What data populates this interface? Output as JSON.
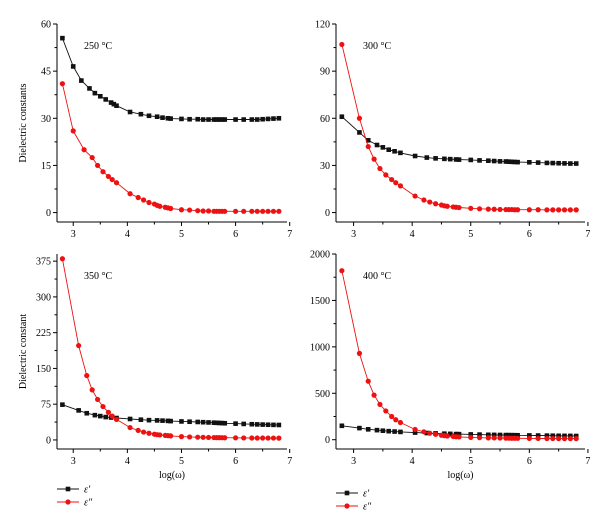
{
  "colors": {
    "eps_real": "#111111",
    "eps_imag": "#ee1111",
    "axis": "#000000",
    "background": "#ffffff"
  },
  "x_tick_labels": [
    "3",
    "4",
    "5",
    "6",
    "7"
  ],
  "chart_data": [
    {
      "type": "line",
      "panel_label": "250 °C",
      "xlabel": "",
      "ylabel": "Dielectric constants",
      "xlim": [
        2.7,
        6.95
      ],
      "ylim": [
        -3,
        60
      ],
      "y_ticks": [
        0,
        15,
        30,
        45,
        60
      ],
      "series": [
        {
          "name": "ε′",
          "marker": "square",
          "x": [
            2.8,
            3.0,
            3.15,
            3.3,
            3.4,
            3.5,
            3.6,
            3.7,
            3.75,
            3.8,
            4.05,
            4.25,
            4.4,
            4.55,
            4.65,
            4.75,
            4.8,
            5.0,
            5.15,
            5.3,
            5.4,
            5.5,
            5.6,
            5.65,
            5.7,
            5.75,
            5.8,
            6.0,
            6.15,
            6.3,
            6.4,
            6.5,
            6.6,
            6.7,
            6.8
          ],
          "y": [
            55.5,
            46.5,
            42.0,
            39.5,
            38.0,
            37.0,
            36.0,
            35.0,
            34.5,
            34.0,
            32.0,
            31.3,
            30.8,
            30.5,
            30.2,
            30.0,
            29.9,
            29.8,
            29.7,
            29.7,
            29.6,
            29.6,
            29.6,
            29.6,
            29.6,
            29.6,
            29.6,
            29.6,
            29.6,
            29.6,
            29.6,
            29.7,
            29.8,
            29.9,
            30.0
          ]
        },
        {
          "name": "ε″",
          "marker": "circle",
          "x": [
            2.8,
            3.0,
            3.2,
            3.35,
            3.45,
            3.55,
            3.65,
            3.72,
            3.8,
            4.05,
            4.2,
            4.3,
            4.4,
            4.5,
            4.55,
            4.6,
            4.7,
            4.75,
            4.8,
            5.0,
            5.15,
            5.3,
            5.4,
            5.5,
            5.6,
            5.65,
            5.7,
            5.75,
            5.8,
            6.0,
            6.15,
            6.3,
            6.4,
            6.5,
            6.6,
            6.7,
            6.8
          ],
          "y": [
            41.0,
            26.0,
            20.0,
            17.5,
            15.0,
            13.0,
            11.5,
            10.5,
            9.5,
            6.0,
            4.8,
            4.0,
            3.2,
            2.7,
            2.3,
            2.0,
            1.7,
            1.5,
            1.3,
            0.9,
            0.8,
            0.6,
            0.5,
            0.5,
            0.4,
            0.4,
            0.4,
            0.4,
            0.4,
            0.4,
            0.4,
            0.4,
            0.4,
            0.4,
            0.4,
            0.4,
            0.4
          ]
        }
      ]
    },
    {
      "type": "line",
      "panel_label": "300 °C",
      "xlabel": "",
      "ylabel": "",
      "xlim": [
        2.7,
        6.95
      ],
      "ylim": [
        -6,
        120
      ],
      "y_ticks": [
        0,
        30,
        60,
        90,
        120
      ],
      "series": [
        {
          "name": "ε′",
          "marker": "square",
          "x": [
            2.8,
            3.1,
            3.25,
            3.4,
            3.5,
            3.6,
            3.7,
            3.8,
            4.05,
            4.25,
            4.4,
            4.55,
            4.65,
            4.75,
            4.8,
            5.0,
            5.15,
            5.3,
            5.4,
            5.5,
            5.6,
            5.65,
            5.7,
            5.75,
            5.8,
            6.0,
            6.15,
            6.3,
            6.4,
            6.5,
            6.6,
            6.7,
            6.8
          ],
          "y": [
            61.0,
            51.0,
            46.0,
            43.0,
            41.5,
            40.0,
            39.0,
            38.0,
            36.0,
            35.0,
            34.5,
            34.2,
            34.0,
            33.8,
            33.7,
            33.5,
            33.2,
            33.0,
            32.8,
            32.6,
            32.5,
            32.4,
            32.3,
            32.2,
            32.1,
            32.0,
            31.8,
            31.6,
            31.5,
            31.4,
            31.3,
            31.2,
            31.2
          ]
        },
        {
          "name": "ε″",
          "marker": "circle",
          "x": [
            2.8,
            3.1,
            3.25,
            3.35,
            3.45,
            3.55,
            3.65,
            3.72,
            3.8,
            4.05,
            4.2,
            4.3,
            4.4,
            4.5,
            4.55,
            4.6,
            4.7,
            4.75,
            4.8,
            5.0,
            5.15,
            5.3,
            5.4,
            5.5,
            5.6,
            5.65,
            5.7,
            5.75,
            5.8,
            6.0,
            6.15,
            6.3,
            6.4,
            6.5,
            6.6,
            6.7,
            6.8
          ],
          "y": [
            107.0,
            60.0,
            42.0,
            34.0,
            28.0,
            24.0,
            21.0,
            19.0,
            17.0,
            10.5,
            8.0,
            6.7,
            5.6,
            4.8,
            4.3,
            4.0,
            3.6,
            3.4,
            3.2,
            2.7,
            2.4,
            2.2,
            2.1,
            2.0,
            1.9,
            1.9,
            1.9,
            1.8,
            1.8,
            1.8,
            1.8,
            1.7,
            1.7,
            1.7,
            1.7,
            1.7,
            1.7
          ]
        }
      ]
    },
    {
      "type": "line",
      "panel_label": "350 °C",
      "xlabel": "log(ω)",
      "ylabel": "Dielectric constant",
      "xlim": [
        2.7,
        6.95
      ],
      "ylim": [
        -19,
        390
      ],
      "y_ticks": [
        0,
        75,
        150,
        225,
        300,
        375
      ],
      "series": [
        {
          "name": "ε′",
          "marker": "square",
          "x": [
            2.8,
            3.1,
            3.25,
            3.4,
            3.5,
            3.6,
            3.7,
            3.8,
            4.05,
            4.25,
            4.4,
            4.55,
            4.65,
            4.75,
            4.8,
            5.0,
            5.15,
            5.3,
            5.4,
            5.5,
            5.6,
            5.65,
            5.7,
            5.75,
            5.8,
            6.0,
            6.15,
            6.3,
            6.4,
            6.5,
            6.6,
            6.7,
            6.8
          ],
          "y": [
            74.0,
            62.0,
            56.0,
            52.0,
            50.0,
            48.0,
            47.0,
            46.0,
            44.0,
            42.5,
            41.5,
            41.0,
            40.5,
            40.0,
            39.5,
            38.8,
            38.2,
            37.7,
            37.2,
            36.7,
            36.2,
            35.9,
            35.6,
            35.3,
            35.0,
            34.2,
            33.6,
            33.0,
            32.6,
            32.2,
            31.9,
            31.6,
            31.4
          ]
        },
        {
          "name": "ε″",
          "marker": "circle",
          "x": [
            2.8,
            3.1,
            3.25,
            3.35,
            3.45,
            3.55,
            3.65,
            3.72,
            3.8,
            4.05,
            4.2,
            4.3,
            4.4,
            4.5,
            4.55,
            4.6,
            4.7,
            4.75,
            4.8,
            5.0,
            5.15,
            5.3,
            5.4,
            5.5,
            5.6,
            5.65,
            5.7,
            5.75,
            5.8,
            6.0,
            6.15,
            6.3,
            6.4,
            6.5,
            6.6,
            6.7,
            6.8
          ],
          "y": [
            380.0,
            198.0,
            135.0,
            105.0,
            85.0,
            70.0,
            58.0,
            50.0,
            43.0,
            26.0,
            20.0,
            16.5,
            14.0,
            12.0,
            11.0,
            10.5,
            9.5,
            9.0,
            8.5,
            7.0,
            6.3,
            5.8,
            5.5,
            5.2,
            5.0,
            4.9,
            4.8,
            4.7,
            4.6,
            4.4,
            4.2,
            4.1,
            4.0,
            4.0,
            3.9,
            3.9,
            3.8
          ]
        }
      ]
    },
    {
      "type": "line",
      "panel_label": "400 °C",
      "xlabel": "log(ω)",
      "ylabel": "",
      "xlim": [
        2.7,
        6.95
      ],
      "ylim": [
        -100,
        2000
      ],
      "y_ticks": [
        0,
        500,
        1000,
        1500,
        2000
      ],
      "series": [
        {
          "name": "ε′",
          "marker": "square",
          "x": [
            2.8,
            3.1,
            3.25,
            3.4,
            3.5,
            3.6,
            3.7,
            3.8,
            4.05,
            4.25,
            4.4,
            4.55,
            4.65,
            4.75,
            4.8,
            5.0,
            5.15,
            5.3,
            5.4,
            5.5,
            5.6,
            5.65,
            5.7,
            5.75,
            5.8,
            6.0,
            6.15,
            6.3,
            6.4,
            6.5,
            6.6,
            6.7,
            6.8
          ],
          "y": [
            150.0,
            125.0,
            112.0,
            103.0,
            97.0,
            92.0,
            88.0,
            84.0,
            77.0,
            72.0,
            68.0,
            65.0,
            63.0,
            61.0,
            60.0,
            57.0,
            55.0,
            53.0,
            52.0,
            51.0,
            50.0,
            49.5,
            49.0,
            48.5,
            48.0,
            46.0,
            45.0,
            44.0,
            43.0,
            42.0,
            41.5,
            41.0,
            40.0
          ]
        },
        {
          "name": "ε″",
          "marker": "circle",
          "x": [
            2.8,
            3.1,
            3.25,
            3.35,
            3.45,
            3.55,
            3.65,
            3.72,
            3.8,
            4.05,
            4.2,
            4.3,
            4.4,
            4.5,
            4.55,
            4.6,
            4.7,
            4.75,
            4.8,
            5.0,
            5.15,
            5.3,
            5.4,
            5.5,
            5.6,
            5.65,
            5.7,
            5.75,
            5.8,
            6.0,
            6.15,
            6.3,
            6.4,
            6.5,
            6.6,
            6.7,
            6.8
          ],
          "y": [
            1820.0,
            930.0,
            630.0,
            480.0,
            380.0,
            310.0,
            250.0,
            215.0,
            185.0,
            110.0,
            85.0,
            70.0,
            58.0,
            48.0,
            44.0,
            40.0,
            35.0,
            32.0,
            30.0,
            25.0,
            22.0,
            20.0,
            19.0,
            18.0,
            17.0,
            16.5,
            16.0,
            15.5,
            15.0,
            14.0,
            13.5,
            13.0,
            12.5,
            12.0,
            12.0,
            11.5,
            11.5
          ]
        }
      ]
    }
  ]
}
